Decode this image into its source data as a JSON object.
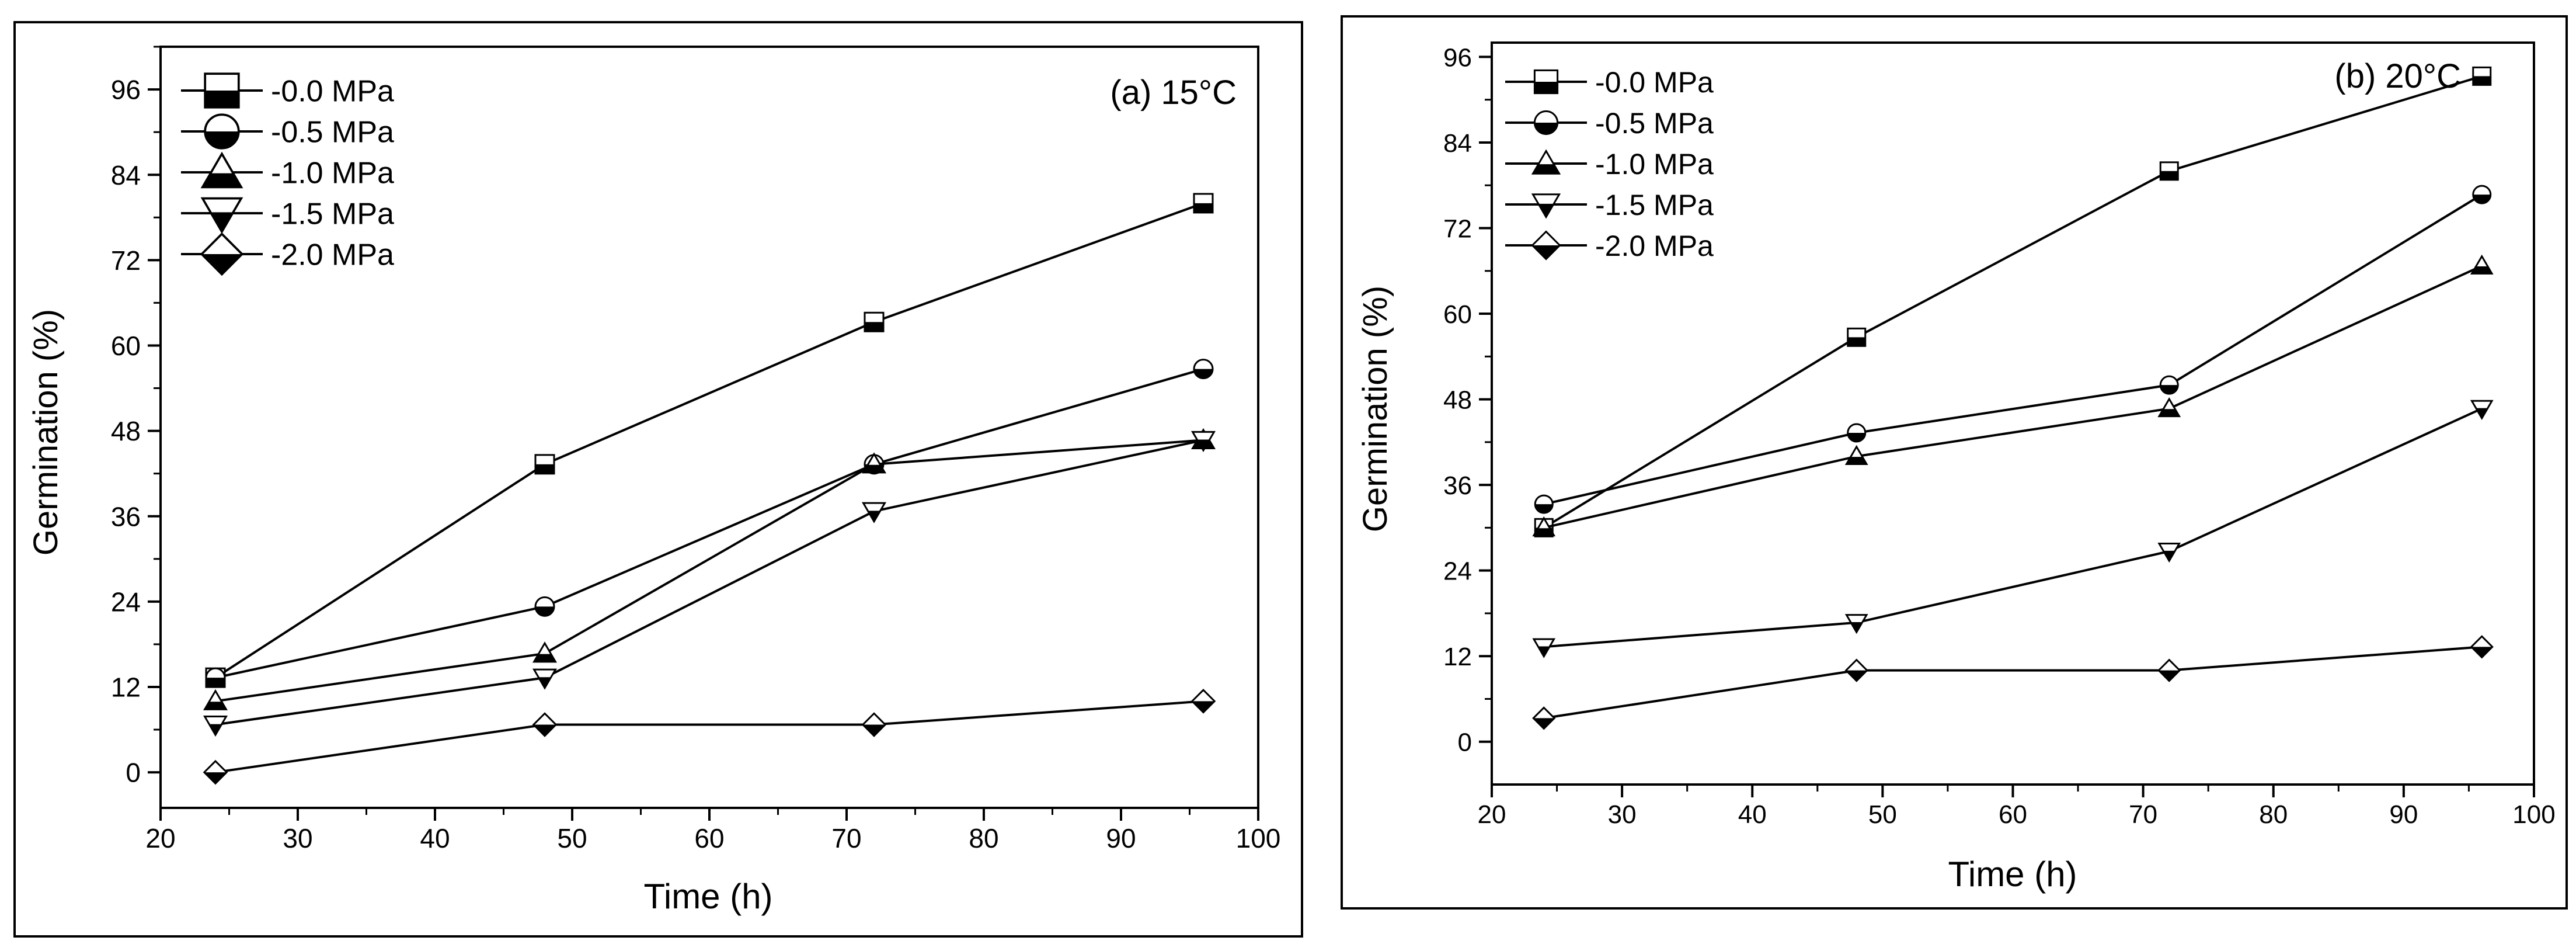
{
  "chart_data": [
    {
      "type": "line",
      "annotation": "(a) 15°C",
      "xlabel": "Time (h)",
      "ylabel": "Germination (%)",
      "xlim": [
        20,
        100
      ],
      "ylim": [
        -5,
        102
      ],
      "xticks": [
        20,
        30,
        40,
        50,
        60,
        70,
        80,
        90,
        100
      ],
      "yticks": [
        0,
        12,
        24,
        36,
        48,
        60,
        72,
        84,
        96
      ],
      "grid": false,
      "legend_position": "top-left",
      "x": [
        24,
        48,
        72,
        96
      ],
      "series": [
        {
          "name": "-0.0 MPa",
          "marker": "square-half",
          "values": [
            13.3,
            43.3,
            63.3,
            80.0
          ]
        },
        {
          "name": "-0.5 MPa",
          "marker": "circle-half",
          "values": [
            13.3,
            23.3,
            43.3,
            56.7
          ]
        },
        {
          "name": "-1.0 MPa",
          "marker": "triangle-half",
          "values": [
            10.0,
            16.7,
            43.3,
            46.7
          ]
        },
        {
          "name": "-1.5 MPa",
          "marker": "triangle-down-half",
          "values": [
            6.7,
            13.3,
            36.7,
            46.7
          ]
        },
        {
          "name": "-2.0 MPa",
          "marker": "diamond-half",
          "values": [
            0.0,
            6.7,
            6.7,
            10.0
          ]
        }
      ]
    },
    {
      "type": "line",
      "annotation": "(b) 20°C",
      "xlabel": "Time (h)",
      "ylabel": "Germination (%)",
      "xlim": [
        20,
        100
      ],
      "ylim": [
        -6,
        98
      ],
      "xticks": [
        20,
        30,
        40,
        50,
        60,
        70,
        80,
        90,
        100
      ],
      "yticks": [
        0,
        12,
        24,
        36,
        48,
        60,
        72,
        84,
        96
      ],
      "grid": false,
      "legend_position": "top-left",
      "x": [
        24,
        48,
        72,
        96
      ],
      "series": [
        {
          "name": "-0.0 MPa",
          "marker": "square-half",
          "values": [
            30.0,
            56.7,
            80.0,
            93.3
          ]
        },
        {
          "name": "-0.5 MPa",
          "marker": "circle-half",
          "values": [
            33.3,
            43.3,
            50.0,
            76.7
          ]
        },
        {
          "name": "-1.0 MPa",
          "marker": "triangle-half",
          "values": [
            30.0,
            40.0,
            46.7,
            66.7
          ]
        },
        {
          "name": "-1.5 MPa",
          "marker": "triangle-down-half",
          "values": [
            13.3,
            16.7,
            26.7,
            46.7
          ]
        },
        {
          "name": "-2.0 MPa",
          "marker": "diamond-half",
          "values": [
            3.3,
            10.0,
            10.0,
            13.3
          ]
        }
      ]
    }
  ]
}
